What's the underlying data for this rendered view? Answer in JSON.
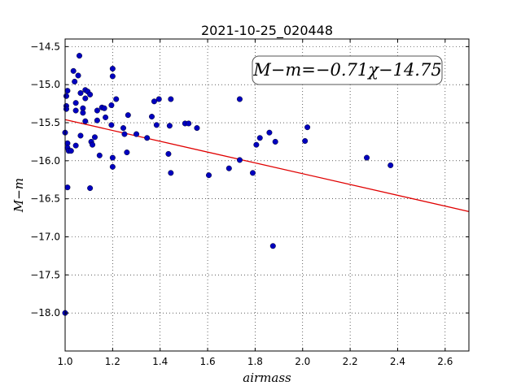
{
  "chart_data": {
    "type": "scatter",
    "title": "2021-10-25_020448",
    "xlabel": "airmass",
    "ylabel": "M−m",
    "xlim": [
      1.0,
      2.7
    ],
    "ylim": [
      -18.5,
      -14.4
    ],
    "xticks": [
      1.0,
      1.2,
      1.4,
      1.6,
      1.8,
      2.0,
      2.2,
      2.4,
      2.6
    ],
    "xtick_labels": [
      "1.0",
      "1.2",
      "1.4",
      "1.6",
      "1.8",
      "2.0",
      "2.2",
      "2.4",
      "2.6"
    ],
    "yticks": [
      -14.5,
      -15.0,
      -15.5,
      -16.0,
      -16.5,
      -17.0,
      -17.5,
      -18.0
    ],
    "ytick_labels": [
      "−14.5",
      "−15.0",
      "−15.5",
      "−16.0",
      "−16.5",
      "−17.0",
      "−17.5",
      "−18.0"
    ],
    "grid": true,
    "annotation": "M−m=−0.71χ−14.75",
    "colors": {
      "points": "#0000bf",
      "fit_line": "#e00000"
    },
    "fit_line": {
      "slope": -0.71,
      "intercept": -14.75,
      "x": [
        1.0,
        2.7
      ]
    },
    "points": [
      [
        1.0,
        -15.63
      ],
      [
        1.0,
        -18.0
      ],
      [
        1.005,
        -15.15
      ],
      [
        1.01,
        -15.08
      ],
      [
        1.005,
        -15.28
      ],
      [
        1.005,
        -15.32
      ],
      [
        1.01,
        -15.77
      ],
      [
        1.01,
        -15.83
      ],
      [
        1.015,
        -15.87
      ],
      [
        1.01,
        -16.35
      ],
      [
        1.025,
        -15.87
      ],
      [
        1.035,
        -14.82
      ],
      [
        1.04,
        -14.96
      ],
      [
        1.045,
        -15.24
      ],
      [
        1.045,
        -15.34
      ],
      [
        1.045,
        -15.8
      ],
      [
        1.055,
        -14.88
      ],
      [
        1.06,
        -14.62
      ],
      [
        1.065,
        -15.11
      ],
      [
        1.065,
        -15.67
      ],
      [
        1.075,
        -15.31
      ],
      [
        1.075,
        -15.37
      ],
      [
        1.085,
        -15.07
      ],
      [
        1.085,
        -15.18
      ],
      [
        1.085,
        -15.48
      ],
      [
        1.095,
        -15.09
      ],
      [
        1.105,
        -15.13
      ],
      [
        1.105,
        -16.36
      ],
      [
        1.11,
        -15.75
      ],
      [
        1.115,
        -15.79
      ],
      [
        1.125,
        -15.69
      ],
      [
        1.135,
        -15.34
      ],
      [
        1.135,
        -15.47
      ],
      [
        1.145,
        -15.93
      ],
      [
        1.155,
        -15.3
      ],
      [
        1.165,
        -15.31
      ],
      [
        1.17,
        -15.43
      ],
      [
        1.195,
        -15.27
      ],
      [
        1.195,
        -15.53
      ],
      [
        1.2,
        -14.79
      ],
      [
        1.2,
        -14.89
      ],
      [
        1.2,
        -15.96
      ],
      [
        1.2,
        -16.08
      ],
      [
        1.215,
        -15.19
      ],
      [
        1.245,
        -15.57
      ],
      [
        1.25,
        -15.65
      ],
      [
        1.26,
        -15.89
      ],
      [
        1.265,
        -15.4
      ],
      [
        1.3,
        -15.65
      ],
      [
        1.345,
        -15.7
      ],
      [
        1.365,
        -15.42
      ],
      [
        1.375,
        -15.22
      ],
      [
        1.385,
        -15.53
      ],
      [
        1.395,
        -15.19
      ],
      [
        1.435,
        -15.91
      ],
      [
        1.44,
        -15.54
      ],
      [
        1.445,
        -16.16
      ],
      [
        1.445,
        -15.19
      ],
      [
        1.505,
        -15.51
      ],
      [
        1.52,
        -15.51
      ],
      [
        1.555,
        -15.57
      ],
      [
        1.605,
        -16.19
      ],
      [
        1.69,
        -16.1
      ],
      [
        1.735,
        -15.19
      ],
      [
        1.735,
        -15.99
      ],
      [
        1.79,
        -16.16
      ],
      [
        1.805,
        -15.79
      ],
      [
        1.82,
        -15.7
      ],
      [
        1.86,
        -15.63
      ],
      [
        1.875,
        -17.12
      ],
      [
        1.885,
        -15.75
      ],
      [
        2.01,
        -15.74
      ],
      [
        2.02,
        -15.56
      ],
      [
        2.27,
        -15.96
      ],
      [
        2.37,
        -16.06
      ]
    ]
  }
}
